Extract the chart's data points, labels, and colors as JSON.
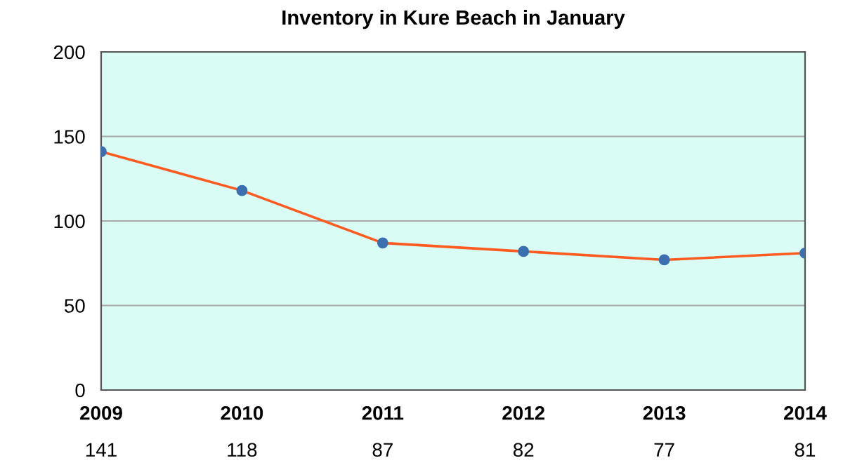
{
  "chart_data": {
    "type": "line",
    "title": "Inventory in Kure Beach in January",
    "categories": [
      "2009",
      "2010",
      "2011",
      "2012",
      "2013",
      "2014"
    ],
    "series": [
      {
        "color": "#ff5a1f",
        "values": [
          141,
          118,
          87,
          82,
          77,
          81
        ]
      }
    ],
    "marker": "circle",
    "ylim": [
      0,
      200
    ],
    "yticks": [
      0,
      50,
      100,
      150,
      200
    ],
    "grid": "y",
    "data_labels": true,
    "legend": false
  }
}
